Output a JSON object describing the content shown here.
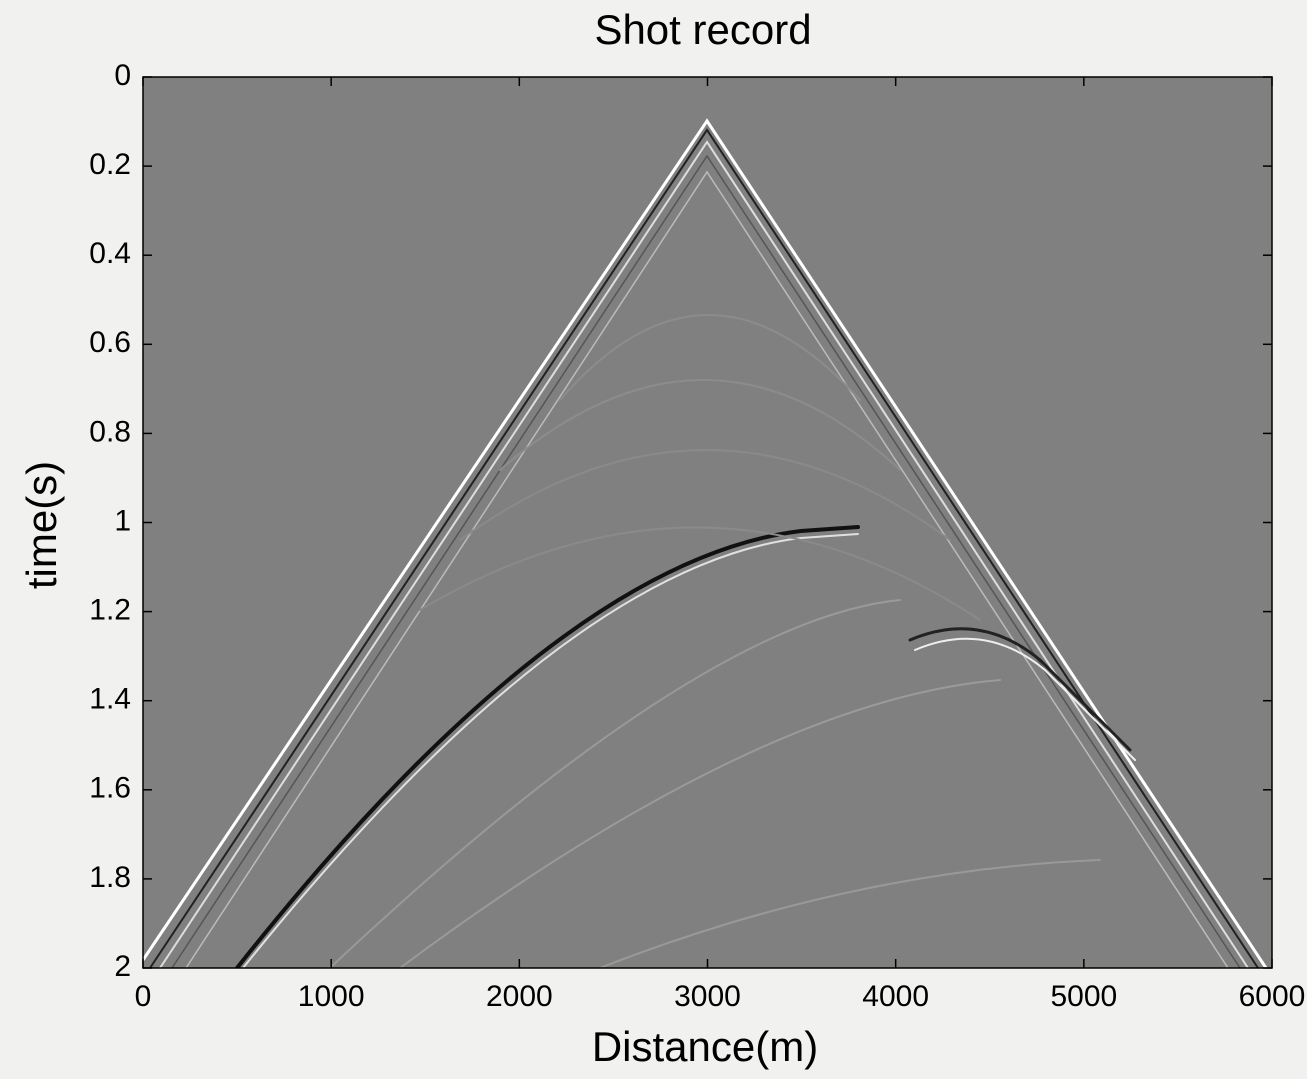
{
  "chart_data": {
    "type": "image",
    "title": "Shot record",
    "x_label": "Distance(m)",
    "y_label": "time(s)",
    "xlim": [
      0,
      6000
    ],
    "xticks": [
      0,
      1000,
      2000,
      3000,
      4000,
      5000,
      6000
    ],
    "ylim": [
      0,
      2
    ],
    "yticks": [
      0,
      0.2,
      0.4,
      0.6,
      0.8,
      1,
      1.2,
      1.4,
      1.6,
      1.8,
      2
    ],
    "y_inverted": true
  }
}
